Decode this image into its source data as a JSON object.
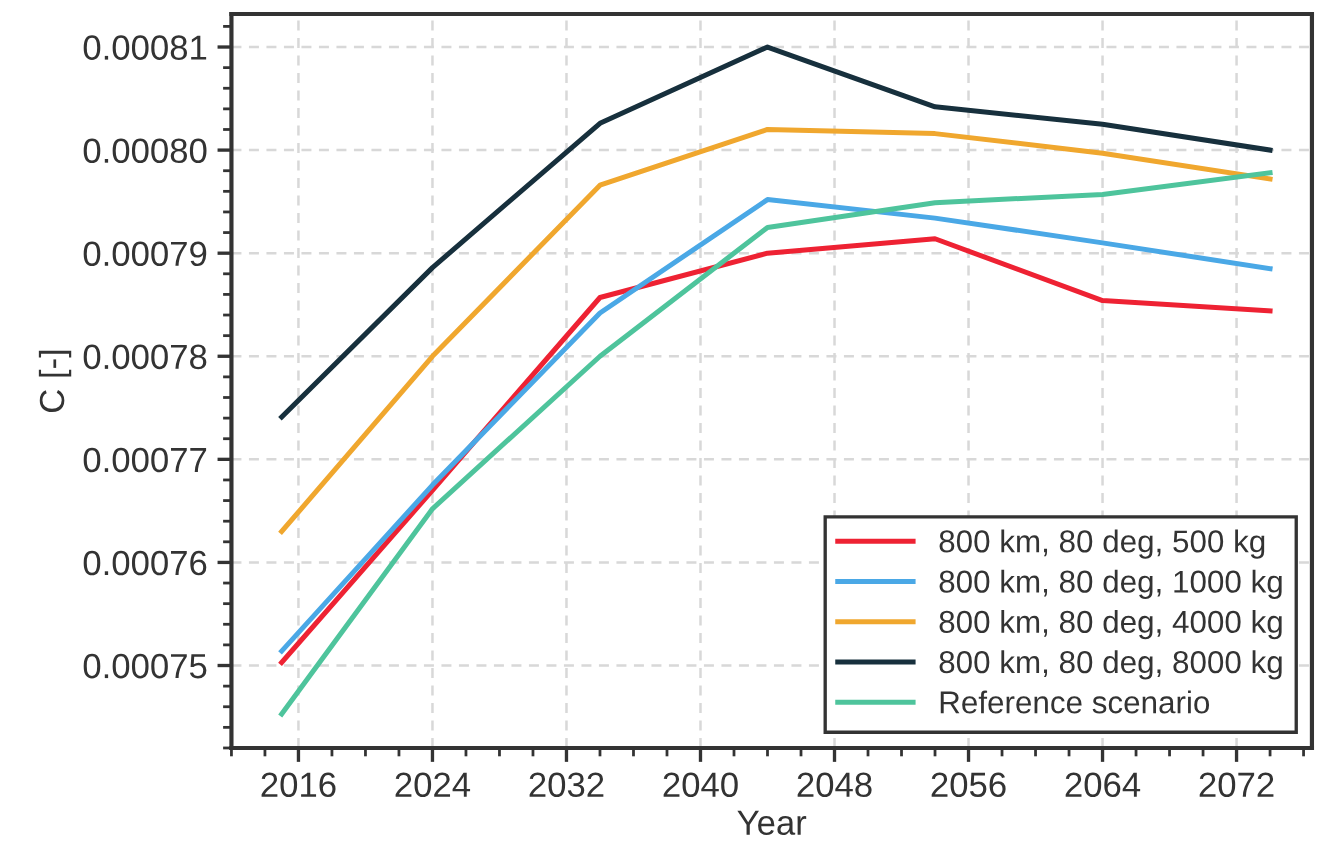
{
  "chart_data": {
    "type": "line",
    "xlabel": "Year",
    "ylabel": "C [-]",
    "x": [
      2015,
      2024,
      2034,
      2044,
      2054,
      2064,
      2074
    ],
    "series": [
      {
        "name": "800 km, 80 deg, 500 kg",
        "color": "#ee2233",
        "values": [
          0.0007503,
          0.000767,
          0.0007857,
          0.00079,
          0.0007914,
          0.0007854,
          0.0007844
        ]
      },
      {
        "name": "800 km, 80 deg, 1000 kg",
        "color": "#4aa8e6",
        "values": [
          0.0007514,
          0.0007675,
          0.0007842,
          0.0007952,
          0.0007934,
          0.000791,
          0.0007885
        ]
      },
      {
        "name": "800 km, 80 deg, 4000 kg",
        "color": "#f0a72e",
        "values": [
          0.000763,
          0.00078,
          0.0007966,
          0.000802,
          0.0008016,
          0.0007997,
          0.0007972
        ]
      },
      {
        "name": "800 km, 80 deg, 8000 kg",
        "color": "#17303d",
        "values": [
          0.0007741,
          0.0007886,
          0.0008026,
          0.00081,
          0.0008042,
          0.0008025,
          0.0008
        ]
      },
      {
        "name": "Reference scenario",
        "color": "#4ec49c",
        "values": [
          0.0007453,
          0.0007652,
          0.00078,
          0.0007925,
          0.0007949,
          0.0007957,
          0.0007978
        ]
      }
    ],
    "xlim": [
      2012,
      2076.5
    ],
    "ylim": [
      0.000742,
      0.0008132
    ],
    "xticks": [
      2016,
      2024,
      2032,
      2040,
      2048,
      2056,
      2064,
      2072
    ],
    "yticks": [
      0.00075,
      0.00076,
      0.00077,
      0.00078,
      0.00079,
      {
        "value": 0.0008,
        "label": "0.00080"
      },
      0.00081
    ],
    "grid": true,
    "legend": "lower right",
    "marker": "none",
    "line_style": "solid"
  }
}
